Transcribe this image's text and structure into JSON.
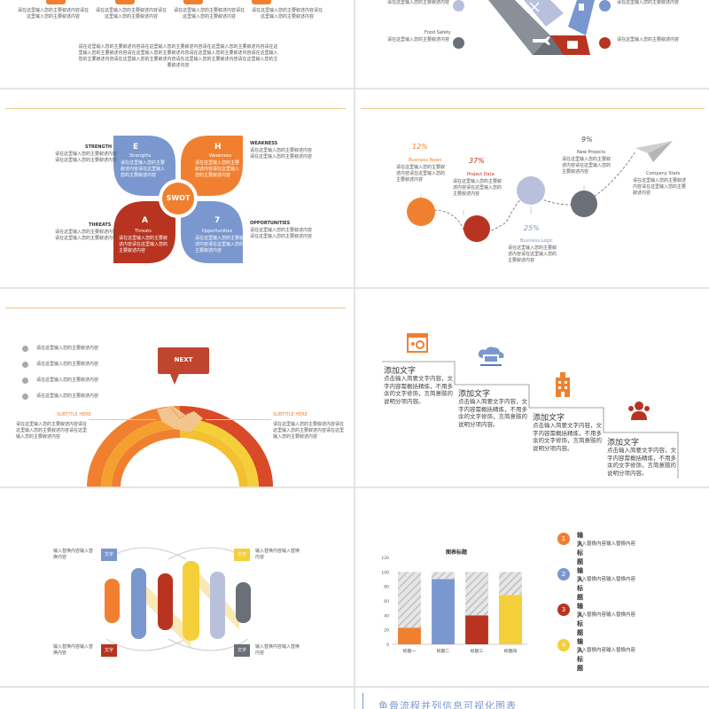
{
  "colors": {
    "orange": "#f08030",
    "blue": "#7b97cf",
    "red": "#b83420",
    "yellow": "#f4cf3a",
    "gray": "#6a6f78",
    "lightblue": "#b9c0dc",
    "line": "#f2c48e"
  },
  "s1": {
    "items": [
      "请在这里输入您的主要叙述内容请在这里输入您的主要叙述内容",
      "请在这里输入您的主要叙述内容请在这里输入您的主要叙述内容"
    ],
    "para": "请在这里输入您的主要叙述内容请在这里输入您的主要叙述内容请在这里输入您的主要叙述内容请在这里输入您的主要叙述内容请在这里输入您的主要叙述内容请在这里输入您的主要叙述内容请在这里输入您的主要叙述内容请在这里输入您的主要叙述内容请在这里输入您的主要叙述内容请在这里输入您的主要叙述内容"
  },
  "s2": {
    "left_label_top": "请在这里输入您的主要叙述内容",
    "left_label_title": "Food Safety",
    "left_label_bottom": "请在这里输入您的主要叙述内容"
  },
  "swot": {
    "center": "SWOT",
    "strength_label": "STRENGTH",
    "weakness_label": "WEAKNESS",
    "threats_label": "THREATS",
    "opportunities_label": "OPPORTUNITIES",
    "s_letter": "E",
    "s_title": "Strengths",
    "w_letter": "H",
    "w_title": "Weakness",
    "t_letter": "A",
    "t_title": "Threats",
    "o_letter": "7",
    "o_title": "Opportunities",
    "petal_text": "请在这里输入您的主要叙述内容请在这里输入您的主要叙述内容",
    "side_text": "请在这里输入您的主要叙述内容请在这里输入您的主要叙述内容"
  },
  "timeline": {
    "p1": "12%",
    "p2": "37%",
    "p3": "25%",
    "p4": "9%",
    "t1": "Business News",
    "t2": "Project Data",
    "t3": "Business Logic",
    "t4": "New Projects",
    "t5": "Company Stats",
    "desc": "请在这里输入您的主要叙述内容请在这里输入您的主要叙述内容"
  },
  "next": {
    "bubble": "NEXT",
    "checks": [
      "请在这里输入您的主要叙述内容",
      "请在这里输入您的主要叙述内容",
      "请在这里输入您的主要叙述内容",
      "请在这里输入您的主要叙述内容"
    ],
    "subtitle_left": "SUBTITLE HERE",
    "subtitle_right": "SUBTITLE HERE",
    "text": "请在这里输入您的主要叙述内容请在这里输入您的主要叙述内容请在这里输入您的主要叙述内容"
  },
  "stairs": {
    "steps": [
      {
        "title": "添加文字",
        "body": "点击输入简要文字内容，文字内容需概括精炼，不用多余的文字修饰，言简意赅的说明分项内容。"
      },
      {
        "title": "添加文字",
        "body": "点击输入简要文字内容，文字内容需概括精炼，不用多余的文字修饰，言简意赅的说明分项内容。"
      },
      {
        "title": "添加文字",
        "body": "点击输入简要文字内容，文字内容需概括精炼，不用多余的文字修饰，言简意赅的说明分项内容。"
      },
      {
        "title": "添加文字",
        "body": "点击输入简要文字内容，文字内容需概括精炼，不用多余的文字修饰，言简意赅的说明分项内容。"
      }
    ]
  },
  "bars": {
    "tag": "文字",
    "text": "输入替换内容输入替换内容"
  },
  "chart_data": {
    "type": "bar",
    "title": "图表标题",
    "categories": [
      "标题一",
      "标题二",
      "标题三",
      "标题四"
    ],
    "series": [
      {
        "name": "series1",
        "values": [
          23,
          90,
          40,
          68
        ],
        "colors": [
          "#f08030",
          "#7b97cf",
          "#b83420",
          "#f4cf3a"
        ]
      },
      {
        "name": "remainder",
        "values": [
          77,
          10,
          60,
          32
        ]
      }
    ],
    "ylim": [
      0,
      120
    ],
    "yticks": [
      0,
      20,
      40,
      60,
      80,
      100,
      120
    ]
  },
  "legend": {
    "items": [
      {
        "num": "1",
        "title": "输入标题",
        "text": "输入替换内容输入替换内容"
      },
      {
        "num": "2",
        "title": "输入标题",
        "text": "输入替换内容输入替换内容"
      },
      {
        "num": "3",
        "title": "输入标题",
        "text": "输入替换内容输入替换内容"
      },
      {
        "num": "4",
        "title": "输入标题",
        "text": "输入替换内容输入替换内容"
      }
    ]
  },
  "footer_title": "鱼骨流程并列信息可视化图表"
}
